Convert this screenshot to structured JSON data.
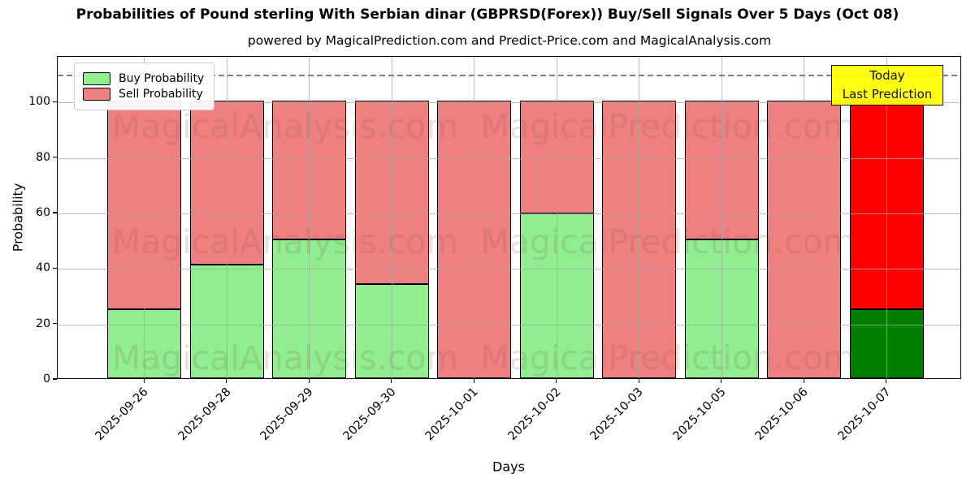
{
  "chart_data": {
    "type": "bar",
    "stacked": true,
    "title": "Probabilities of Pound sterling With Serbian dinar (GBPRSD(Forex)) Buy/Sell Signals Over 5 Days (Oct 08)",
    "subtitle": "powered by MagicalPrediction.com and Predict-Price.com and MagicalAnalysis.com",
    "xlabel": "Days",
    "ylabel": "Probability",
    "ylim": [
      0,
      116.5
    ],
    "yticks": [
      0,
      20,
      40,
      60,
      80,
      100
    ],
    "dashed_line_y": 110,
    "grid": true,
    "legend_position": "top-left",
    "categories": [
      "2025-09-26",
      "2025-09-28",
      "2025-09-29",
      "2025-09-30",
      "2025-10-01",
      "2025-10-02",
      "2025-10-03",
      "2025-10-05",
      "2025-10-06",
      "2025-10-07"
    ],
    "series": [
      {
        "name": "Buy Probability",
        "color": "#90EE90",
        "values": [
          25,
          41,
          50,
          34,
          0,
          59.5,
          0,
          50,
          0,
          25
        ]
      },
      {
        "name": "Sell Probability",
        "color": "#F08080",
        "values": [
          75,
          59,
          50,
          66,
          100,
          40.5,
          100,
          50,
          100,
          75
        ]
      }
    ],
    "today_bar": {
      "index": 9,
      "buy_color": "#008000",
      "sell_color": "#FF0000"
    }
  },
  "annotation": {
    "line1": "Today",
    "line2": "Last Prediction",
    "bg_color": "#FFFF00"
  },
  "watermarks": {
    "left_text": "MagicalAnalysis.com",
    "right_text": "MagicalPrediction.com"
  },
  "colors": {
    "grid": "#a5a5a5",
    "dashed_line": "#7f7f7f",
    "axis": "#000000"
  }
}
